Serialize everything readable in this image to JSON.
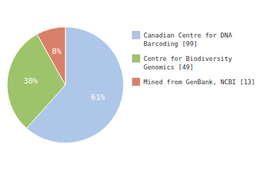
{
  "chart_data": {
    "type": "pie",
    "categories": [
      "Canadian Centre for DNA\nBarcoding [99]",
      "Centre for Biodiversity\nGenomics [49]",
      "Mined from GenBank, NCBI [13]"
    ],
    "values": [
      61,
      30,
      8
    ],
    "value_labels": [
      "61%",
      "30%",
      "8%"
    ],
    "colors": [
      "#aec6e8",
      "#9dc46a",
      "#d98068"
    ],
    "data_labels": true,
    "legend": "right"
  }
}
